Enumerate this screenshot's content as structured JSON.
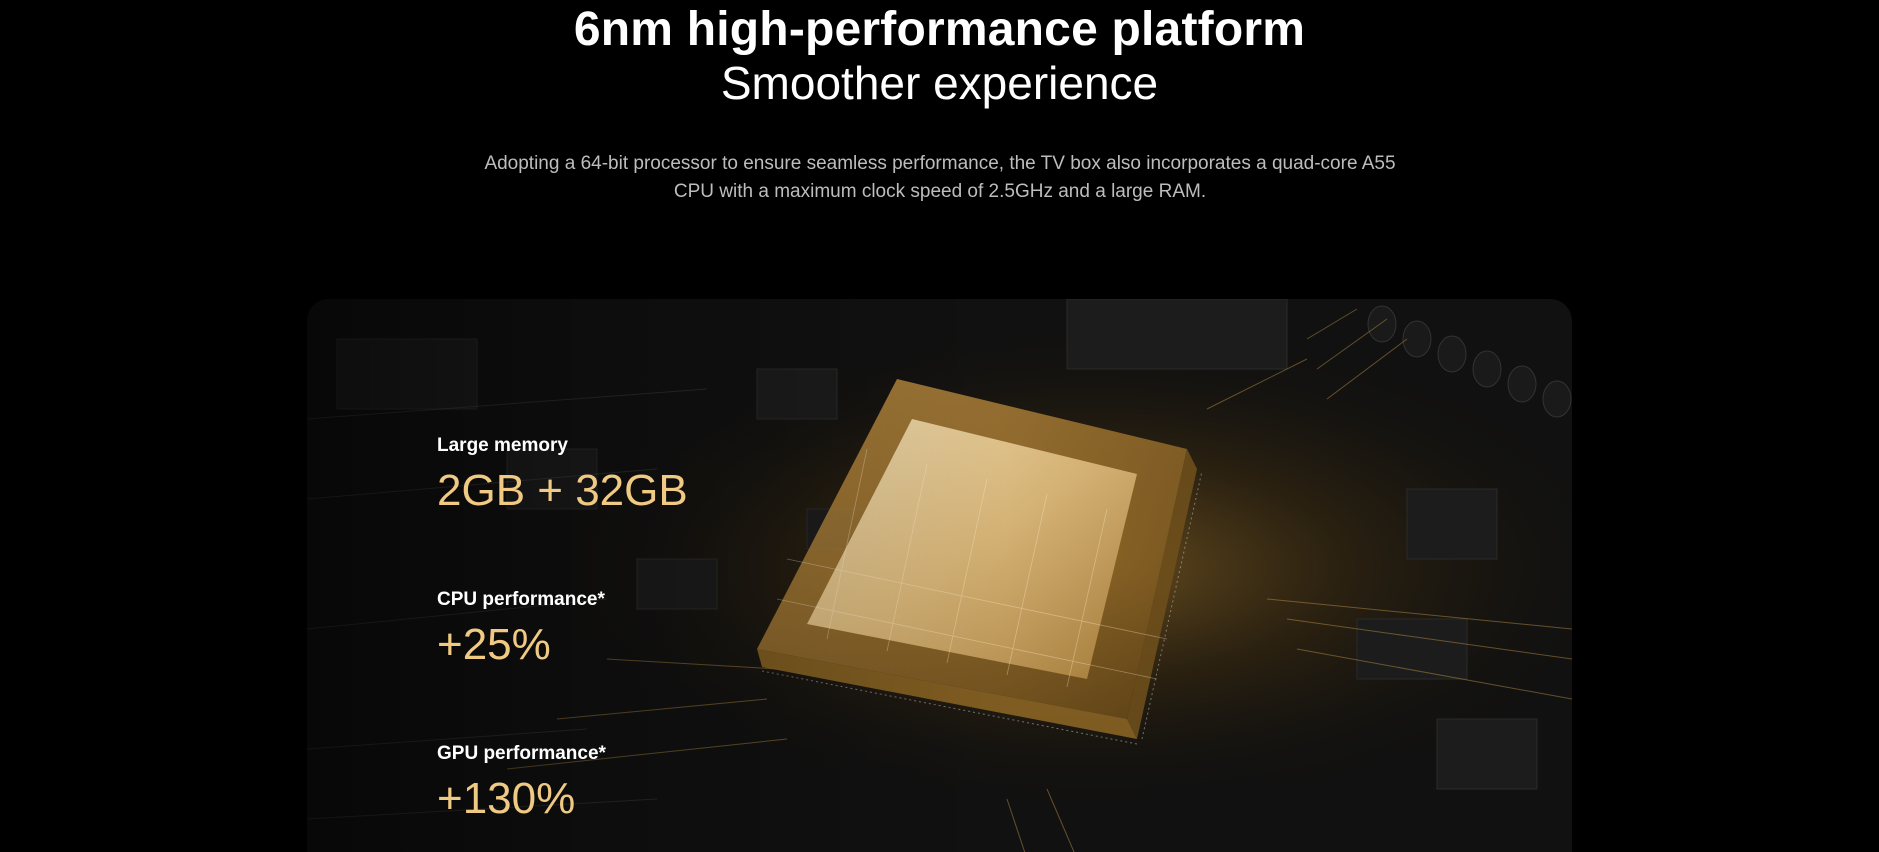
{
  "hero": {
    "title": "6nm high-performance platform",
    "subtitle": "Smoother experience",
    "description_line1": "Adopting a 64-bit processor to ensure seamless performance, the TV box also incorporates a quad-core A55",
    "description_line2": "CPU with a maximum clock speed of 2.5GHz and a large RAM."
  },
  "specs": [
    {
      "label": "Large memory",
      "value": "2GB + 32GB"
    },
    {
      "label": "CPU performance*",
      "value": "+25%"
    },
    {
      "label": "GPU performance*",
      "value": "+130%"
    }
  ],
  "colors": {
    "background": "#000000",
    "accent_gold": "#f0c982",
    "description_gray": "#bdbdbd"
  },
  "visual": {
    "icon": "chip-icon"
  }
}
